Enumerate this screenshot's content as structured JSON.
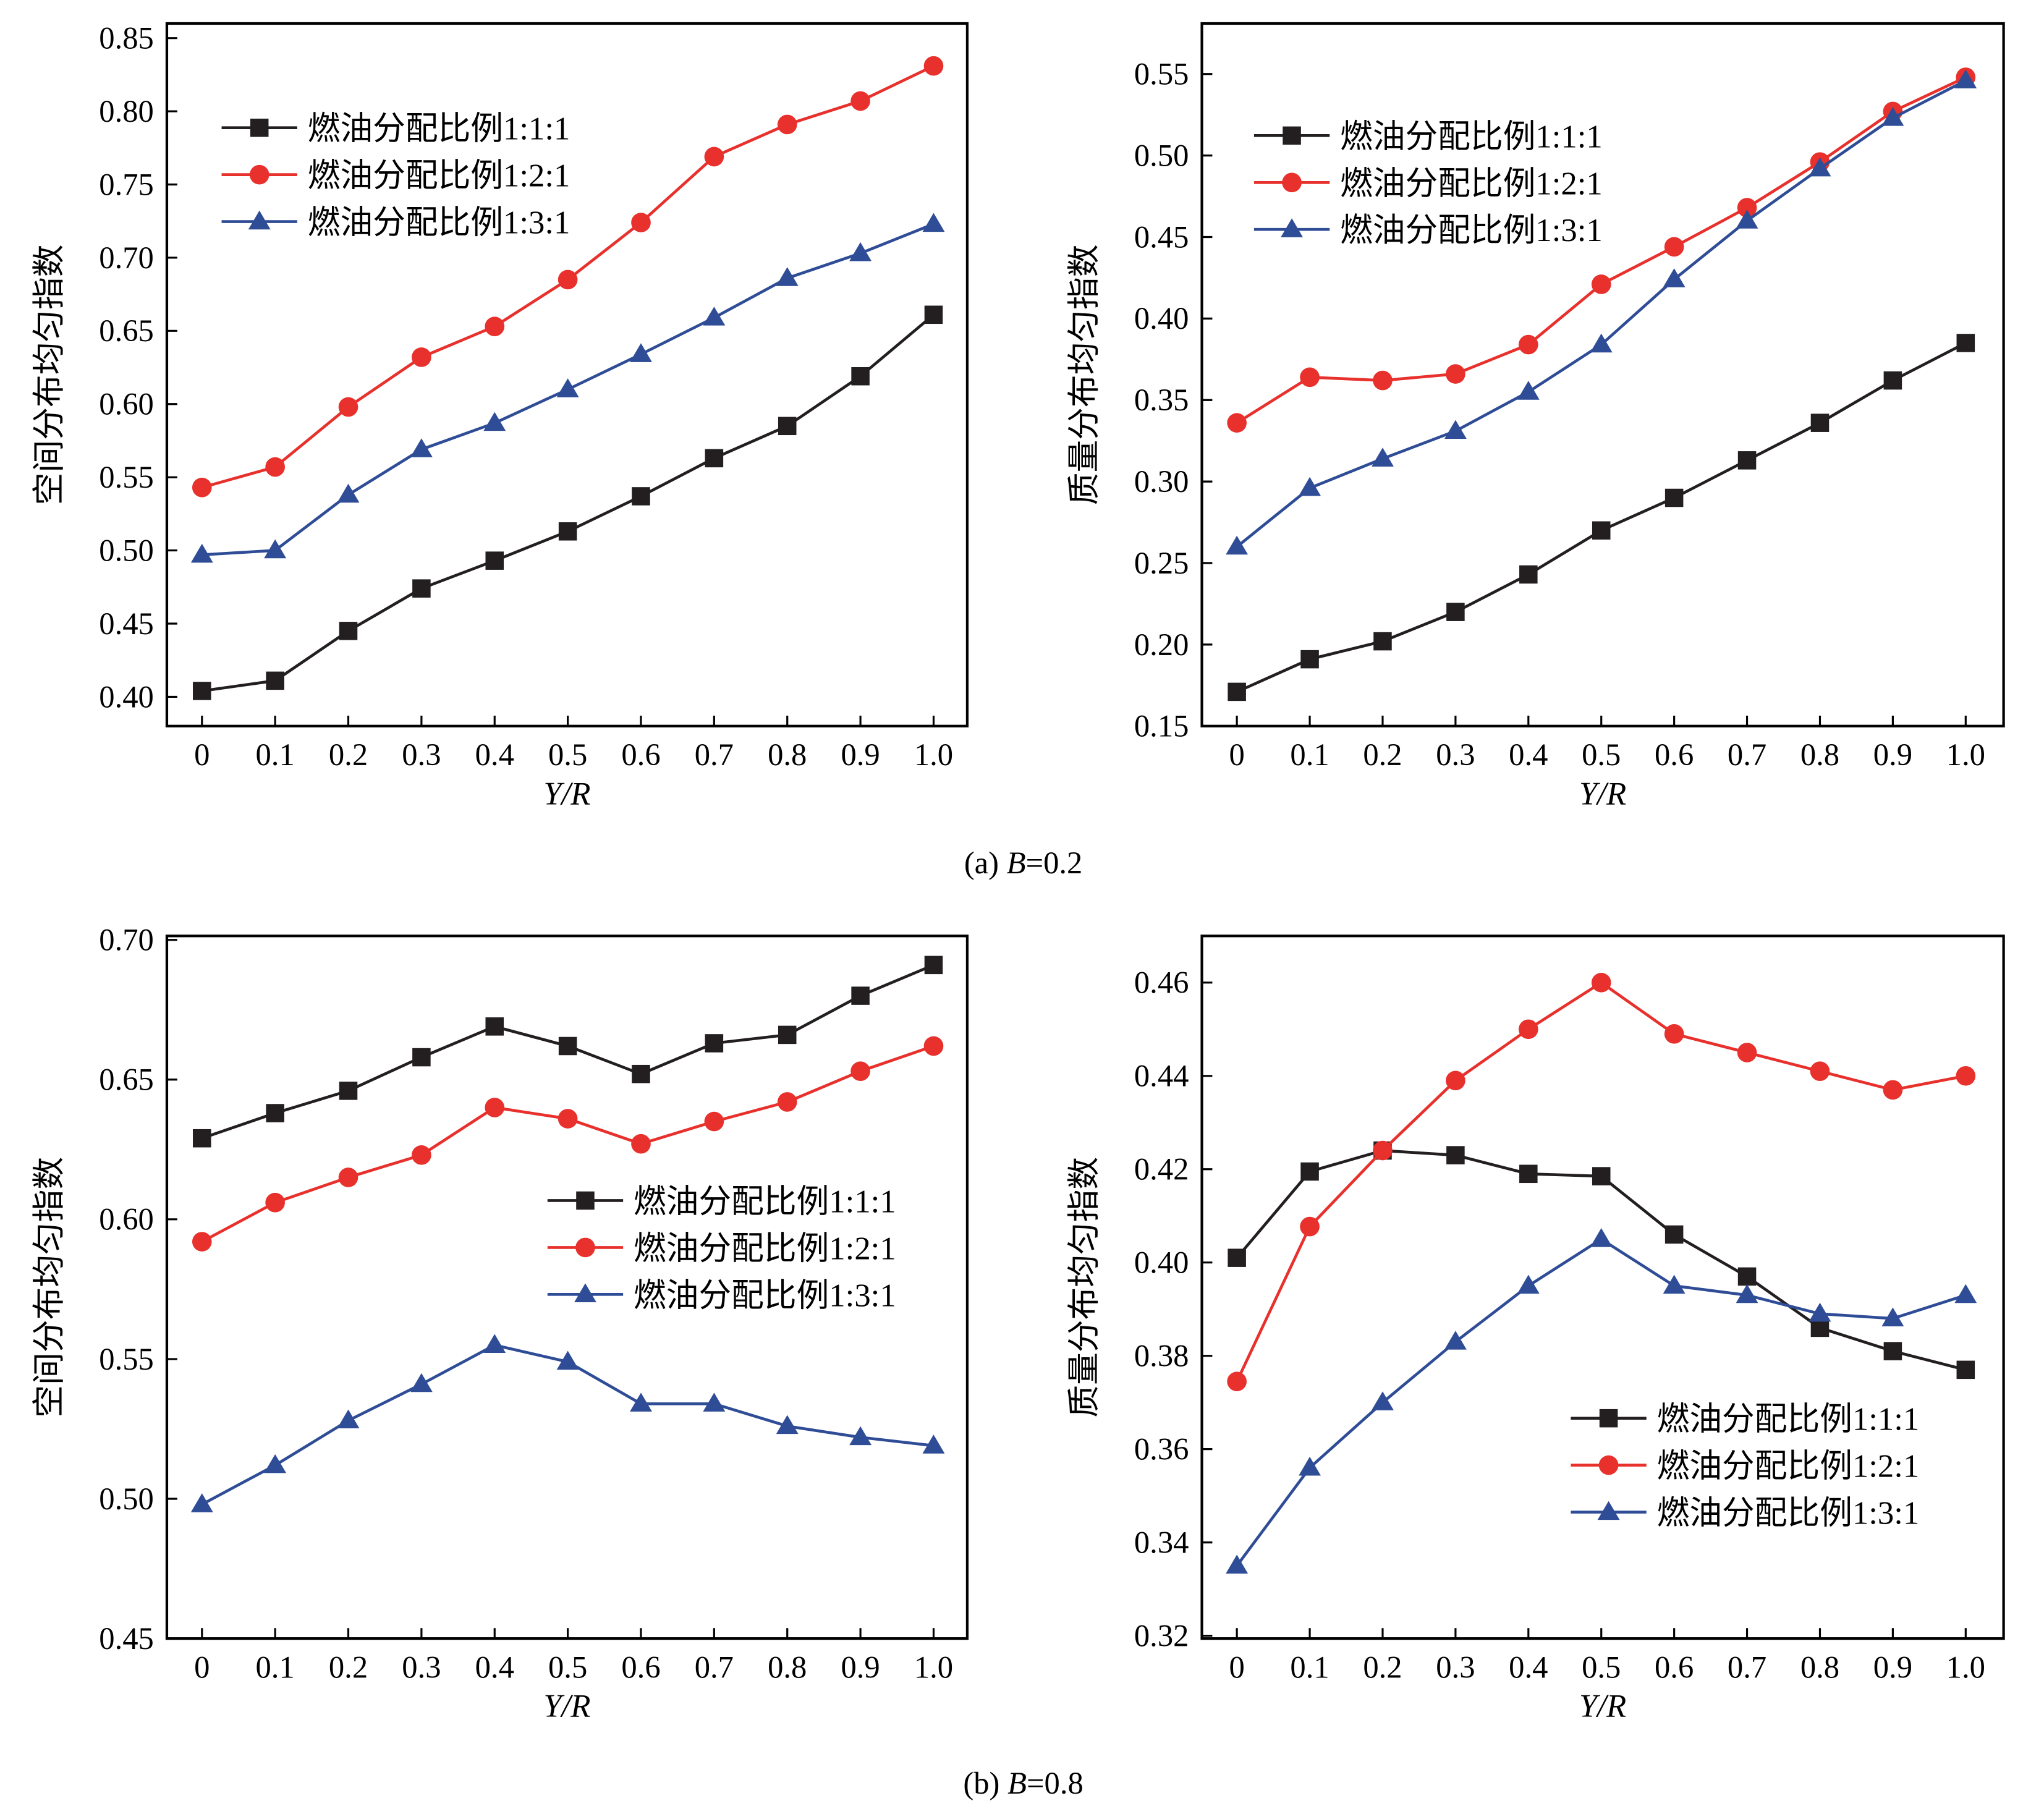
{
  "colors": {
    "s1": "#231f20",
    "s2": "#e8302c",
    "s3": "#2f4d96"
  },
  "legend_labels": [
    "燃油分配比例1:1:1",
    "燃油分配比例1:2:1",
    "燃油分配比例1:3:1"
  ],
  "captions": [
    {
      "prefix": "(a) ",
      "var": "B",
      "rest": "=0.2"
    },
    {
      "prefix": "(b) ",
      "var": "B",
      "rest": "=0.8"
    }
  ],
  "chart_data": [
    {
      "type": "line",
      "panel": "a-left",
      "xlabel": "Y/R",
      "ylabel": "空间分布均匀指数",
      "x": [
        0,
        0.1,
        0.2,
        0.3,
        0.4,
        0.5,
        0.6,
        0.7,
        0.8,
        0.9,
        1.0
      ],
      "xticks": [
        "0",
        "0.1",
        "0.2",
        "0.3",
        "0.4",
        "0.5",
        "0.6",
        "0.7",
        "0.8",
        "0.9",
        "1.0"
      ],
      "xlim": [
        -0.048,
        1.046
      ],
      "ylim": [
        0.38,
        0.86
      ],
      "yticks": [
        "0.40",
        "0.45",
        "0.50",
        "0.55",
        "0.60",
        "0.65",
        "0.70",
        "0.75",
        "0.80",
        "0.85"
      ],
      "legend": "top-left",
      "series": [
        {
          "name": "燃油分配比例1:1:1",
          "marker": "square",
          "values": [
            0.404,
            0.411,
            0.445,
            0.474,
            0.493,
            0.513,
            0.537,
            0.563,
            0.585,
            0.619,
            0.661
          ]
        },
        {
          "name": "燃油分配比例1:2:1",
          "marker": "circle",
          "values": [
            0.543,
            0.557,
            0.598,
            0.632,
            0.653,
            0.685,
            0.724,
            0.769,
            0.791,
            0.807,
            0.831
          ]
        },
        {
          "name": "燃油分配比例1:3:1",
          "marker": "triangle",
          "values": [
            0.497,
            0.5,
            0.538,
            0.569,
            0.587,
            0.61,
            0.634,
            0.659,
            0.686,
            0.703,
            0.723
          ]
        }
      ]
    },
    {
      "type": "line",
      "panel": "a-right",
      "xlabel": "Y/R",
      "ylabel": "质量分布均匀指数",
      "x": [
        0,
        0.1,
        0.2,
        0.3,
        0.4,
        0.5,
        0.6,
        0.7,
        0.8,
        0.9,
        1.0
      ],
      "xticks": [
        "0",
        "0.1",
        "0.2",
        "0.3",
        "0.4",
        "0.5",
        "0.6",
        "0.7",
        "0.8",
        "0.9",
        "1.0"
      ],
      "xlim": [
        -0.048,
        1.052
      ],
      "ylim": [
        0.15,
        0.581
      ],
      "yticks": [
        "0.15",
        "0.20",
        "0.25",
        "0.30",
        "0.35",
        "0.40",
        "0.45",
        "0.50",
        "0.55"
      ],
      "legend": "top-left",
      "series": [
        {
          "name": "燃油分配比例1:1:1",
          "marker": "square",
          "values": [
            0.171,
            0.191,
            0.202,
            0.22,
            0.243,
            0.27,
            0.29,
            0.313,
            0.336,
            0.362,
            0.385
          ]
        },
        {
          "name": "燃油分配比例1:2:1",
          "marker": "circle",
          "values": [
            0.336,
            0.364,
            0.362,
            0.366,
            0.384,
            0.421,
            0.444,
            0.468,
            0.496,
            0.527,
            0.548
          ]
        },
        {
          "name": "燃油分配比例1:3:1",
          "marker": "triangle",
          "values": [
            0.26,
            0.296,
            0.314,
            0.331,
            0.355,
            0.384,
            0.424,
            0.46,
            0.492,
            0.523,
            0.546
          ]
        }
      ]
    },
    {
      "type": "line",
      "panel": "b-left",
      "xlabel": "Y/R",
      "ylabel": "空间分布均匀指数",
      "x": [
        0,
        0.1,
        0.2,
        0.3,
        0.4,
        0.5,
        0.6,
        0.7,
        0.8,
        0.9,
        1.0
      ],
      "xticks": [
        "0",
        "0.1",
        "0.2",
        "0.3",
        "0.4",
        "0.5",
        "0.6",
        "0.7",
        "0.8",
        "0.9",
        "1.0"
      ],
      "xlim": [
        -0.048,
        1.046
      ],
      "ylim": [
        0.45,
        0.7014
      ],
      "yticks": [
        "0.45",
        "0.50",
        "0.55",
        "0.60",
        "0.65",
        "0.70"
      ],
      "legend": "center-right",
      "series": [
        {
          "name": "燃油分配比例1:1:1",
          "marker": "square",
          "values": [
            0.629,
            0.638,
            0.646,
            0.658,
            0.669,
            0.662,
            0.652,
            0.663,
            0.666,
            0.68,
            0.691
          ]
        },
        {
          "name": "燃油分配比例1:2:1",
          "marker": "circle",
          "values": [
            0.592,
            0.606,
            0.615,
            0.623,
            0.64,
            0.636,
            0.627,
            0.635,
            0.642,
            0.653,
            0.662
          ]
        },
        {
          "name": "燃油分配比例1:3:1",
          "marker": "triangle",
          "values": [
            0.498,
            0.512,
            0.528,
            0.541,
            0.555,
            0.549,
            0.534,
            0.534,
            0.526,
            0.522,
            0.519
          ]
        }
      ]
    },
    {
      "type": "line",
      "panel": "b-right",
      "xlabel": "Y/R",
      "ylabel": "质量分布均匀指数",
      "x": [
        0,
        0.1,
        0.2,
        0.3,
        0.4,
        0.5,
        0.6,
        0.7,
        0.8,
        0.9,
        1.0
      ],
      "xticks": [
        "0",
        "0.1",
        "0.2",
        "0.3",
        "0.4",
        "0.5",
        "0.6",
        "0.7",
        "0.8",
        "0.9",
        "1.0"
      ],
      "xlim": [
        -0.048,
        1.052
      ],
      "ylim": [
        0.3194,
        0.47
      ],
      "yticks": [
        "0.32",
        "0.34",
        "0.36",
        "0.38",
        "0.40",
        "0.42",
        "0.44",
        "0.46"
      ],
      "legend": "bottom-right",
      "series": [
        {
          "name": "燃油分配比例1:1:1",
          "marker": "square",
          "values": [
            0.401,
            0.4195,
            0.424,
            0.423,
            0.419,
            0.4185,
            0.406,
            0.397,
            0.386,
            0.381,
            0.377
          ]
        },
        {
          "name": "燃油分配比例1:2:1",
          "marker": "circle",
          "values": [
            0.3745,
            0.4077,
            0.424,
            0.439,
            0.45,
            0.46,
            0.449,
            0.445,
            0.441,
            0.437,
            0.44
          ]
        },
        {
          "name": "燃油分配比例1:3:1",
          "marker": "triangle",
          "values": [
            0.335,
            0.356,
            0.37,
            0.383,
            0.395,
            0.405,
            0.395,
            0.393,
            0.389,
            0.388,
            0.393
          ]
        }
      ]
    }
  ]
}
